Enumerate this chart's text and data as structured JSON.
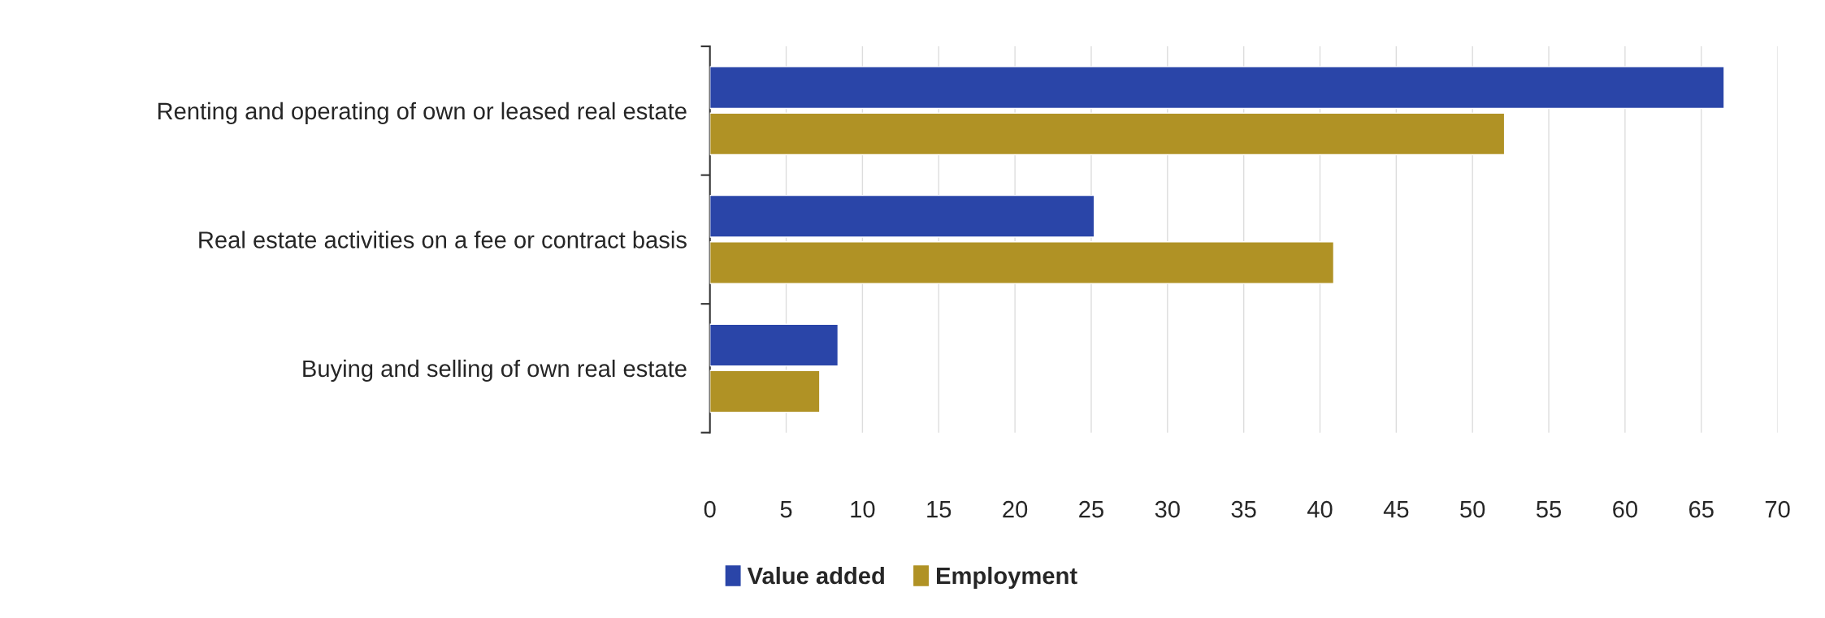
{
  "chart_data": {
    "type": "bar",
    "orientation": "horizontal",
    "categories": [
      "Renting and operating of own or leased real estate",
      "Real estate activities on a fee or contract basis",
      "Buying and selling of own real estate"
    ],
    "series": [
      {
        "name": "Value added",
        "color": "#2a45a8",
        "values": [
          66.5,
          25.2,
          8.4
        ]
      },
      {
        "name": "Employment",
        "color": "#b09225",
        "values": [
          52.1,
          40.9,
          7.2
        ]
      }
    ],
    "xlim": [
      0,
      70
    ],
    "xticks": [
      0,
      5,
      10,
      15,
      20,
      25,
      30,
      35,
      40,
      45,
      50,
      55,
      60,
      65,
      70
    ],
    "grid": "x",
    "legend": "bottom"
  }
}
